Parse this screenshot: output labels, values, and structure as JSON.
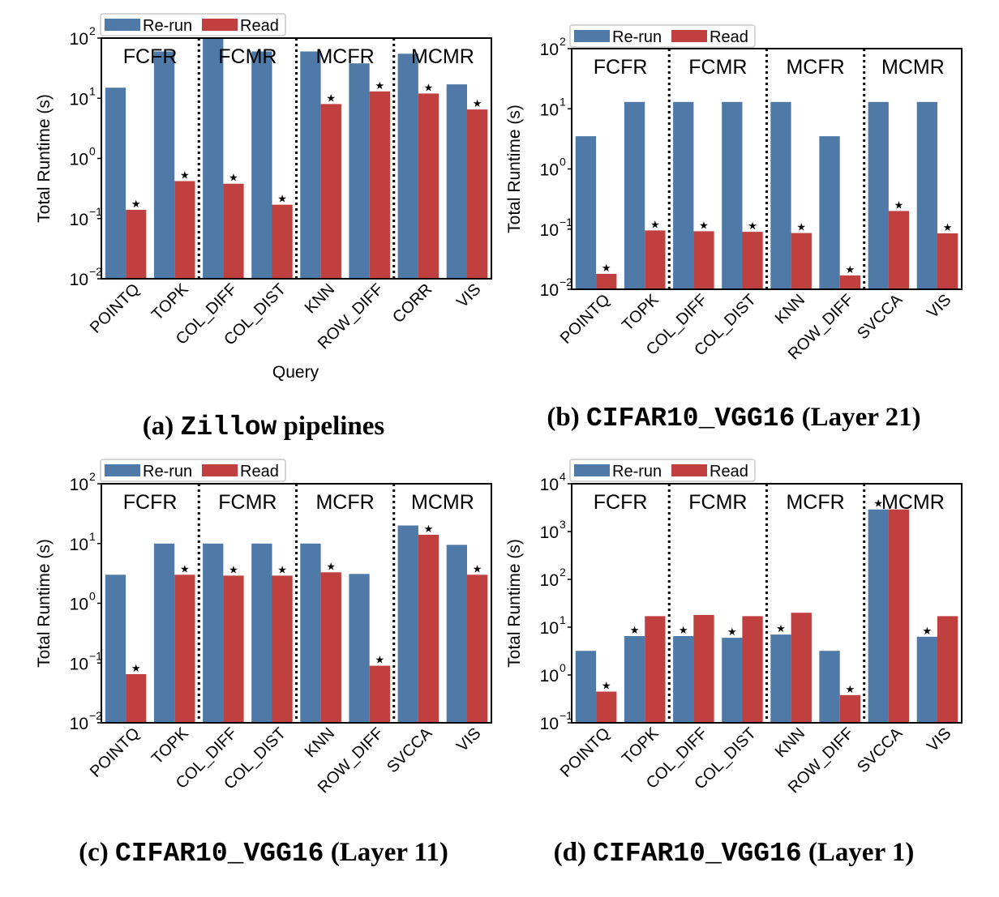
{
  "colors": {
    "rerun": "#4f7aa7",
    "read": "#c0403f",
    "frame": "#000000"
  },
  "legend": {
    "rerun": "Re-run",
    "read": "Read"
  },
  "chart_data": [
    {
      "type": "bar",
      "panel": "a",
      "caption_prefix": "(a) ",
      "caption_name": "Zillow",
      "caption_suffix": " pipelines",
      "title": "(a) Zillow pipelines",
      "xlabel": "Query",
      "ylabel": "Total Runtime (s)",
      "yscale": "log",
      "ylim_exp": [
        -2,
        2
      ],
      "yticks_exp": [
        -2,
        -1,
        0,
        1,
        2
      ],
      "ytick_labels": [
        "10",
        "10",
        "10",
        "10",
        "10"
      ],
      "ytick_exps": [
        "−2",
        "−1",
        "0",
        "1",
        "2"
      ],
      "groups": [
        "FCFR",
        "FCMR",
        "MCFR",
        "MCMR"
      ],
      "categories": [
        "POINTQ",
        "TOPK",
        "COL_DIFF",
        "COL_DIST",
        "KNN",
        "ROW_DIFF",
        "CORR",
        "VIS"
      ],
      "series": [
        {
          "name": "Re-run",
          "values": [
            15,
            60,
            110,
            60,
            60,
            38,
            55,
            17
          ]
        },
        {
          "name": "Read",
          "values": [
            0.14,
            0.42,
            0.38,
            0.17,
            8.0,
            13.0,
            12.0,
            6.5
          ]
        }
      ],
      "best_marker": "★",
      "best_series": [
        1,
        1,
        1,
        1,
        1,
        1,
        1,
        1
      ]
    },
    {
      "type": "bar",
      "panel": "b",
      "caption_prefix": "(b) ",
      "caption_name": "CIFAR10_VGG16",
      "caption_suffix": " (Layer 21)",
      "title": "(b) CIFAR10_VGG16 (Layer 21)",
      "xlabel": "",
      "ylabel": "Total Runtime (s)",
      "yscale": "log",
      "ylim_exp": [
        -2,
        2
      ],
      "yticks_exp": [
        -2,
        -1,
        0,
        1,
        2
      ],
      "ytick_labels": [
        "10",
        "10",
        "10",
        "10",
        "10"
      ],
      "ytick_exps": [
        "−2",
        "−1",
        "0",
        "1",
        "2"
      ],
      "groups": [
        "FCFR",
        "FCMR",
        "MCFR",
        "MCMR"
      ],
      "categories": [
        "POINTQ",
        "TOPK",
        "COL_DIFF",
        "COL_DIST",
        "KNN",
        "ROW_DIFF",
        "SVCCA",
        "VIS"
      ],
      "series": [
        {
          "name": "Re-run",
          "values": [
            3.5,
            13,
            13,
            13,
            13,
            3.5,
            13,
            13
          ]
        },
        {
          "name": "Read",
          "values": [
            0.018,
            0.095,
            0.092,
            0.09,
            0.086,
            0.017,
            0.2,
            0.085
          ]
        }
      ],
      "best_marker": "★",
      "best_series": [
        1,
        1,
        1,
        1,
        1,
        1,
        1,
        1
      ]
    },
    {
      "type": "bar",
      "panel": "c",
      "caption_prefix": "(c) ",
      "caption_name": "CIFAR10_VGG16",
      "caption_suffix": " (Layer 11)",
      "title": "(c) CIFAR10_VGG16 (Layer 11)",
      "xlabel": "",
      "ylabel": "Total Runtime (s)",
      "yscale": "log",
      "ylim_exp": [
        -2,
        2
      ],
      "yticks_exp": [
        -2,
        -1,
        0,
        1,
        2
      ],
      "ytick_labels": [
        "10",
        "10",
        "10",
        "10",
        "10"
      ],
      "ytick_exps": [
        "−2",
        "−1",
        "0",
        "1",
        "2"
      ],
      "groups": [
        "FCFR",
        "FCMR",
        "MCFR",
        "MCMR"
      ],
      "categories": [
        "POINTQ",
        "TOPK",
        "COL_DIFF",
        "COL_DIST",
        "KNN",
        "ROW_DIFF",
        "SVCCA",
        "VIS"
      ],
      "series": [
        {
          "name": "Re-run",
          "values": [
            3.0,
            10,
            10,
            10,
            10,
            3.1,
            20,
            9.5
          ]
        },
        {
          "name": "Read",
          "values": [
            0.065,
            3.0,
            2.9,
            2.9,
            3.3,
            0.09,
            14,
            3.0
          ]
        }
      ],
      "best_marker": "★",
      "best_series": [
        1,
        1,
        1,
        1,
        1,
        1,
        1,
        1
      ]
    },
    {
      "type": "bar",
      "panel": "d",
      "caption_prefix": "(d) ",
      "caption_name": "CIFAR10_VGG16",
      "caption_suffix": " (Layer 1)",
      "title": "(d) CIFAR10_VGG16 (Layer 1)",
      "xlabel": "",
      "ylabel": "Total Runtime (s)",
      "yscale": "log",
      "ylim_exp": [
        -1,
        4
      ],
      "yticks_exp": [
        -1,
        0,
        1,
        2,
        3,
        4
      ],
      "ytick_labels": [
        "10",
        "10",
        "10",
        "10",
        "10",
        "10"
      ],
      "ytick_exps": [
        "−1",
        "0",
        "1",
        "2",
        "3",
        "4"
      ],
      "groups": [
        "FCFR",
        "FCMR",
        "MCFR",
        "MCMR"
      ],
      "categories": [
        "POINTQ",
        "TOPK",
        "COL_DIFF",
        "COL_DIST",
        "KNN",
        "ROW_DIFF",
        "SVCCA",
        "VIS"
      ],
      "series": [
        {
          "name": "Re-run",
          "values": [
            3.2,
            6.5,
            6.5,
            6.0,
            7.0,
            3.2,
            2900,
            6.3
          ]
        },
        {
          "name": "Read",
          "values": [
            0.45,
            17,
            18,
            17,
            20,
            0.38,
            2900,
            17
          ]
        }
      ],
      "best_marker": "★",
      "best_series": [
        1,
        0,
        0,
        0,
        0,
        1,
        0,
        0
      ]
    }
  ]
}
